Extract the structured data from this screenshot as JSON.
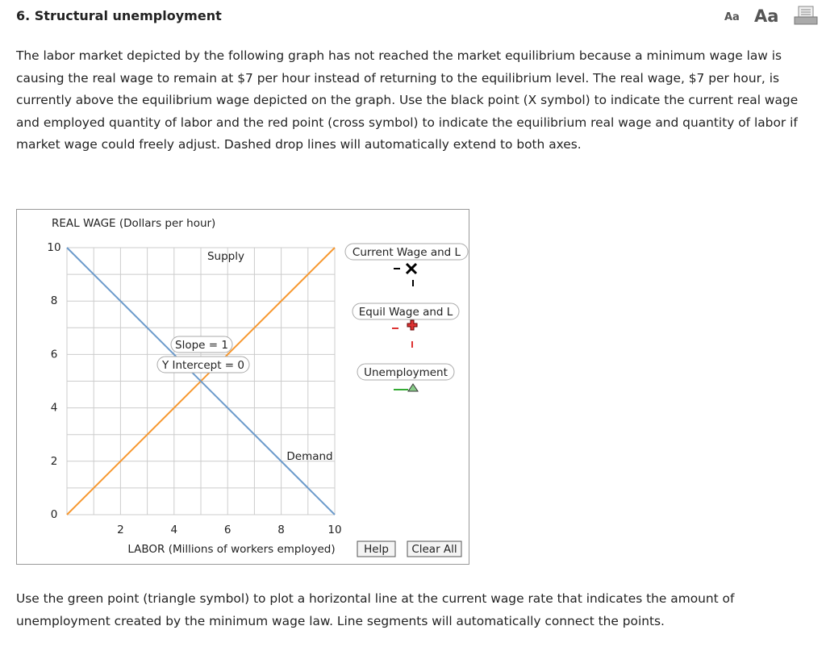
{
  "header": {
    "title": "6. Structural unemployment",
    "font_small": "Aa",
    "font_large": "Aa"
  },
  "instructions": "The labor market depicted by the following graph has not reached the market equilibrium because a minimum wage law is causing the real wage to remain at $7 per hour instead of returning to the equilibrium level. The real wage, $7 per hour, is currently above the equilibrium wage depicted on the graph. Use the black point (X symbol) to indicate the current real wage and employed quantity of labor and the red point (cross symbol) to indicate the equilibrium real wage and quantity of labor if market wage could freely adjust. Dashed drop lines will automatically extend to both axes.",
  "graph": {
    "y_axis_label": "REAL WAGE (Dollars per hour)",
    "x_axis_label": "LABOR (Millions of workers employed)",
    "xlim": [
      0,
      10
    ],
    "ylim": [
      0,
      10
    ],
    "xticks": [
      2,
      4,
      6,
      8,
      10
    ],
    "yticks": [
      0,
      2,
      4,
      6,
      8,
      10
    ],
    "grid_lines": [
      0,
      1,
      2,
      3,
      4,
      5,
      6,
      7,
      8,
      9,
      10
    ],
    "lines": [
      {
        "name": "Supply",
        "color": "#f7982f",
        "x": [
          0,
          10
        ],
        "y": [
          0,
          10
        ]
      },
      {
        "name": "Demand",
        "color": "#6b9acb",
        "x": [
          0,
          10
        ],
        "y": [
          10,
          0
        ]
      }
    ],
    "annotations": [
      "Slope = 1",
      "Y Intercept = 0"
    ],
    "palette": [
      "Current Wage and L",
      "Equil Wage and L",
      "Unemployment"
    ],
    "buttons": [
      "Help",
      "Clear All"
    ]
  },
  "footer": "Use the green point (triangle symbol) to plot a horizontal line at the current wage rate that indicates the amount of unemployment created by the minimum wage law. Line segments will automatically connect the points."
}
